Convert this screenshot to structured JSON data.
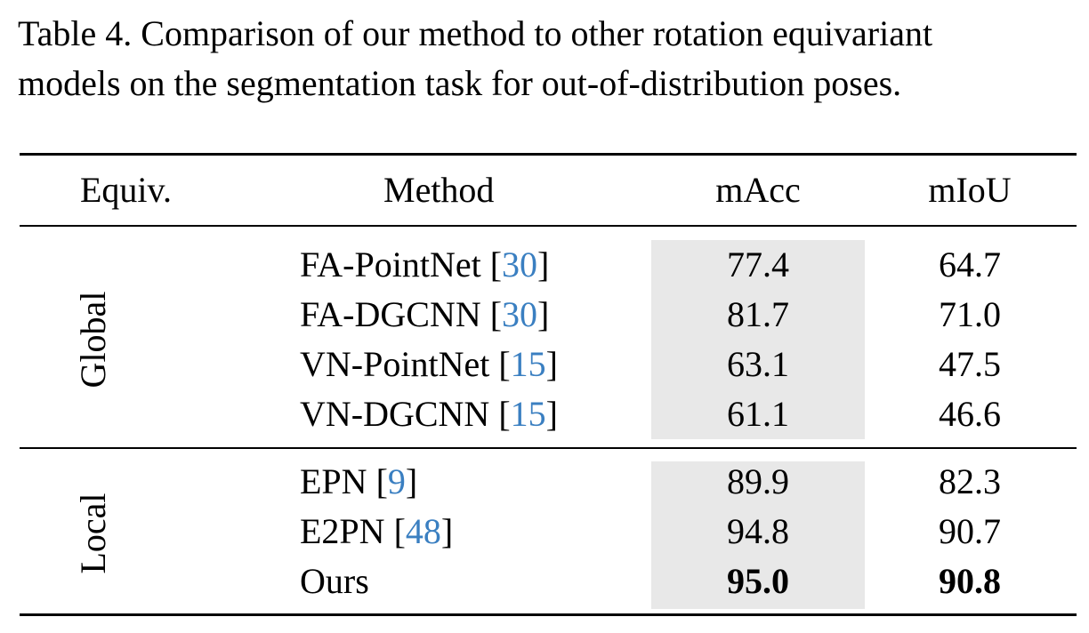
{
  "caption": {
    "line1": "Table 4.  Comparison of our method to other rotation equivariant",
    "line2": "models on the segmentation task for out-of-distribution poses."
  },
  "table": {
    "headers": {
      "equiv": "Equiv.",
      "method": "Method",
      "macc": "mAcc",
      "miou": "mIoU"
    },
    "groups": [
      {
        "label": "Global",
        "rows": [
          {
            "method": "FA-PointNet ",
            "cite_open": "[",
            "cite": "30",
            "cite_close": "]",
            "macc": "77.4",
            "miou": "64.7"
          },
          {
            "method": "FA-DGCNN ",
            "cite_open": "[",
            "cite": "30",
            "cite_close": "]",
            "macc": "81.7",
            "miou": "71.0"
          },
          {
            "method": "VN-PointNet ",
            "cite_open": "[",
            "cite": "15",
            "cite_close": "]",
            "macc": "63.1",
            "miou": "47.5"
          },
          {
            "method": "VN-DGCNN ",
            "cite_open": "[",
            "cite": "15",
            "cite_close": "]",
            "macc": "61.1",
            "miou": "46.6"
          }
        ]
      },
      {
        "label": "Local",
        "rows": [
          {
            "method": "EPN ",
            "cite_open": "[",
            "cite": "9",
            "cite_close": "]",
            "macc": "89.9",
            "miou": "82.3"
          },
          {
            "method": "E2PN ",
            "cite_open": "[",
            "cite": "48",
            "cite_close": "]",
            "macc": "94.8",
            "miou": "90.7"
          },
          {
            "method": "Ours",
            "cite_open": "",
            "cite": "",
            "cite_close": "",
            "macc": "95.0",
            "miou": "90.8",
            "bold": true
          }
        ]
      }
    ],
    "colors": {
      "citation": "#3a7fc1",
      "highlight_column": "#e8e8e8"
    }
  }
}
